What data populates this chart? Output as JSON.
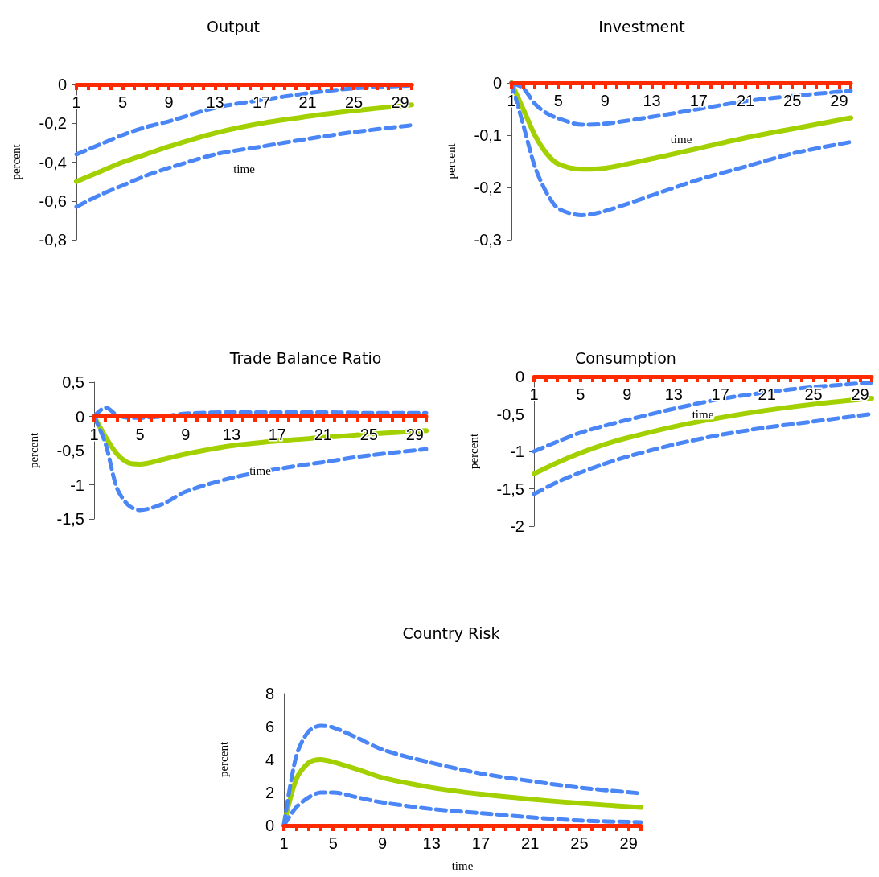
{
  "chart_data": [
    {
      "type": "line",
      "title": "Output",
      "xlabel": "time",
      "ylabel": "percent",
      "xlim": [
        1,
        30
      ],
      "ylim": [
        -0.8,
        0
      ],
      "xticks": [
        1,
        {
          "value": 2,
          "label": null
        },
        {
          "value": 3,
          "label": null
        },
        {
          "value": 4,
          "label": null
        },
        5,
        {
          "value": 6,
          "label": null
        },
        {
          "value": 7,
          "label": null
        },
        {
          "value": 8,
          "label": null
        },
        9,
        {
          "value": 10,
          "label": null
        },
        {
          "value": 11,
          "label": null
        },
        {
          "value": 12,
          "label": null
        },
        13,
        {
          "value": 14,
          "label": null
        },
        {
          "value": 15,
          "label": null
        },
        {
          "value": 16,
          "label": null
        },
        17,
        {
          "value": 18,
          "label": null
        },
        {
          "value": 19,
          "label": null
        },
        {
          "value": 20,
          "label": null
        },
        21,
        {
          "value": 22,
          "label": null
        },
        {
          "value": 23,
          "label": null
        },
        {
          "value": 24,
          "label": null
        },
        25,
        {
          "value": 26,
          "label": null
        },
        {
          "value": 27,
          "label": null
        },
        {
          "value": 28,
          "label": null
        },
        29,
        {
          "value": 30,
          "label": null
        }
      ],
      "yticks": [
        0,
        {
          "value": -0.2,
          "label": "-0,2"
        },
        {
          "value": -0.4,
          "label": "-0,4"
        },
        {
          "value": -0.6,
          "label": "-0,6"
        },
        {
          "value": -0.8,
          "label": "-0,8"
        }
      ],
      "x": [
        1,
        3,
        5,
        7,
        9,
        13,
        17,
        21,
        25,
        30
      ],
      "marker": "none",
      "grid": false,
      "series": [
        {
          "color": "#a2d000",
          "line_style": "solid",
          "values": [
            -0.5,
            -0.45,
            -0.4,
            -0.36,
            -0.32,
            -0.25,
            -0.2,
            -0.165,
            -0.135,
            -0.105
          ]
        },
        {
          "color": "#4a86f5",
          "line_style": "dashed",
          "values": [
            -0.36,
            -0.31,
            -0.26,
            -0.22,
            -0.19,
            -0.12,
            -0.08,
            -0.045,
            -0.02,
            -0.005
          ]
        },
        {
          "color": "#4a86f5",
          "line_style": "dashed",
          "values": [
            -0.63,
            -0.57,
            -0.52,
            -0.47,
            -0.43,
            -0.36,
            -0.32,
            -0.28,
            -0.245,
            -0.21
          ]
        }
      ]
    },
    {
      "type": "line",
      "title": "Investment",
      "xlabel": "time",
      "ylabel": "percent",
      "xlim": [
        1,
        30
      ],
      "ylim": [
        -0.3,
        0
      ],
      "xticks": [
        1,
        {
          "value": 2,
          "label": null
        },
        {
          "value": 3,
          "label": null
        },
        {
          "value": 4,
          "label": null
        },
        5,
        {
          "value": 6,
          "label": null
        },
        {
          "value": 7,
          "label": null
        },
        {
          "value": 8,
          "label": null
        },
        9,
        {
          "value": 10,
          "label": null
        },
        {
          "value": 11,
          "label": null
        },
        {
          "value": 12,
          "label": null
        },
        13,
        {
          "value": 14,
          "label": null
        },
        {
          "value": 15,
          "label": null
        },
        {
          "value": 16,
          "label": null
        },
        17,
        {
          "value": 18,
          "label": null
        },
        {
          "value": 19,
          "label": null
        },
        {
          "value": 20,
          "label": null
        },
        21,
        {
          "value": 22,
          "label": null
        },
        {
          "value": 23,
          "label": null
        },
        {
          "value": 24,
          "label": null
        },
        25,
        {
          "value": 26,
          "label": null
        },
        {
          "value": 27,
          "label": null
        },
        {
          "value": 28,
          "label": null
        },
        29,
        {
          "value": 30,
          "label": null
        }
      ],
      "yticks": [
        0,
        {
          "value": -0.1,
          "label": "-0,1"
        },
        {
          "value": -0.2,
          "label": "-0,2"
        },
        {
          "value": -0.3,
          "label": "-0,3"
        }
      ],
      "x": [
        1,
        2,
        3,
        4,
        5,
        7,
        9,
        13,
        17,
        21,
        25,
        30
      ],
      "marker": "none",
      "grid": false,
      "series": [
        {
          "color": "#a2d000",
          "line_style": "solid",
          "values": [
            0,
            -0.05,
            -0.1,
            -0.135,
            -0.155,
            -0.165,
            -0.163,
            -0.145,
            -0.125,
            -0.105,
            -0.088,
            -0.067
          ]
        },
        {
          "color": "#4a86f5",
          "line_style": "dashed",
          "values": [
            0,
            -0.01,
            -0.04,
            -0.058,
            -0.068,
            -0.08,
            -0.078,
            -0.065,
            -0.05,
            -0.035,
            -0.025,
            -0.015
          ]
        },
        {
          "color": "#4a86f5",
          "line_style": "dashed",
          "values": [
            0,
            -0.08,
            -0.16,
            -0.21,
            -0.24,
            -0.253,
            -0.245,
            -0.215,
            -0.185,
            -0.16,
            -0.135,
            -0.113
          ]
        }
      ]
    },
    {
      "type": "line",
      "title": "Trade Balance Ratio",
      "xlabel": "time",
      "ylabel": "percent",
      "xlim": [
        1,
        30
      ],
      "ylim": [
        -1.5,
        0.5
      ],
      "xticks": [
        1,
        {
          "value": 2,
          "label": null
        },
        {
          "value": 3,
          "label": null
        },
        {
          "value": 4,
          "label": null
        },
        5,
        {
          "value": 6,
          "label": null
        },
        {
          "value": 7,
          "label": null
        },
        {
          "value": 8,
          "label": null
        },
        9,
        {
          "value": 10,
          "label": null
        },
        {
          "value": 11,
          "label": null
        },
        {
          "value": 12,
          "label": null
        },
        13,
        {
          "value": 14,
          "label": null
        },
        {
          "value": 15,
          "label": null
        },
        {
          "value": 16,
          "label": null
        },
        17,
        {
          "value": 18,
          "label": null
        },
        {
          "value": 19,
          "label": null
        },
        {
          "value": 20,
          "label": null
        },
        21,
        {
          "value": 22,
          "label": null
        },
        {
          "value": 23,
          "label": null
        },
        {
          "value": 24,
          "label": null
        },
        25,
        {
          "value": 26,
          "label": null
        },
        {
          "value": 27,
          "label": null
        },
        {
          "value": 28,
          "label": null
        },
        29,
        {
          "value": 30,
          "label": null
        }
      ],
      "yticks": [
        {
          "value": 0.5,
          "label": "0,5"
        },
        0,
        {
          "value": -0.5,
          "label": "-0,5"
        },
        -1,
        {
          "value": -1.5,
          "label": "-1,5"
        }
      ],
      "x": [
        1,
        2,
        3,
        4,
        5,
        7,
        9,
        13,
        17,
        21,
        25,
        30
      ],
      "marker": "none",
      "grid": false,
      "series": [
        {
          "color": "#a2d000",
          "line_style": "solid",
          "values": [
            0,
            -0.3,
            -0.55,
            -0.68,
            -0.7,
            -0.63,
            -0.55,
            -0.43,
            -0.36,
            -0.31,
            -0.26,
            -0.21
          ]
        },
        {
          "color": "#4a86f5",
          "line_style": "dashed",
          "values": [
            0,
            0.13,
            0.02,
            -0.02,
            -0.02,
            0,
            0.04,
            0.06,
            0.06,
            0.06,
            0.05,
            0.05
          ]
        },
        {
          "color": "#4a86f5",
          "line_style": "dashed",
          "values": [
            0,
            -0.4,
            -1.05,
            -1.3,
            -1.37,
            -1.28,
            -1.1,
            -0.9,
            -0.77,
            -0.67,
            -0.57,
            -0.48
          ]
        }
      ]
    },
    {
      "type": "line",
      "title": "Consumption",
      "xlabel": "time",
      "ylabel": "percent",
      "xlim": [
        1,
        30
      ],
      "ylim": [
        -2,
        0
      ],
      "xticks": [
        1,
        {
          "value": 2,
          "label": null
        },
        {
          "value": 3,
          "label": null
        },
        {
          "value": 4,
          "label": null
        },
        5,
        {
          "value": 6,
          "label": null
        },
        {
          "value": 7,
          "label": null
        },
        {
          "value": 8,
          "label": null
        },
        9,
        {
          "value": 10,
          "label": null
        },
        {
          "value": 11,
          "label": null
        },
        {
          "value": 12,
          "label": null
        },
        13,
        {
          "value": 14,
          "label": null
        },
        {
          "value": 15,
          "label": null
        },
        {
          "value": 16,
          "label": null
        },
        17,
        {
          "value": 18,
          "label": null
        },
        {
          "value": 19,
          "label": null
        },
        {
          "value": 20,
          "label": null
        },
        21,
        {
          "value": 22,
          "label": null
        },
        {
          "value": 23,
          "label": null
        },
        {
          "value": 24,
          "label": null
        },
        25,
        {
          "value": 26,
          "label": null
        },
        {
          "value": 27,
          "label": null
        },
        {
          "value": 28,
          "label": null
        },
        29,
        {
          "value": 30,
          "label": null
        }
      ],
      "yticks": [
        0,
        {
          "value": -0.5,
          "label": "-0,5"
        },
        -1,
        {
          "value": -1.5,
          "label": "-1,5"
        },
        -2
      ],
      "x": [
        1,
        3,
        5,
        7,
        9,
        13,
        17,
        21,
        25,
        30
      ],
      "marker": "none",
      "grid": false,
      "series": [
        {
          "color": "#a2d000",
          "line_style": "solid",
          "values": [
            -1.3,
            -1.15,
            -1.02,
            -0.91,
            -0.82,
            -0.67,
            -0.55,
            -0.45,
            -0.37,
            -0.29
          ]
        },
        {
          "color": "#4a86f5",
          "line_style": "dashed",
          "values": [
            -1.0,
            -0.87,
            -0.75,
            -0.66,
            -0.58,
            -0.43,
            -0.3,
            -0.21,
            -0.14,
            -0.08
          ]
        },
        {
          "color": "#4a86f5",
          "line_style": "dashed",
          "values": [
            -1.57,
            -1.41,
            -1.28,
            -1.17,
            -1.07,
            -0.91,
            -0.78,
            -0.68,
            -0.6,
            -0.5
          ]
        }
      ]
    },
    {
      "type": "line",
      "title": "Country Risk",
      "xlabel": "time",
      "ylabel": "percent",
      "xlim": [
        1,
        30
      ],
      "ylim": [
        0,
        8
      ],
      "xticks": [
        1,
        {
          "value": 2,
          "label": null
        },
        {
          "value": 3,
          "label": null
        },
        {
          "value": 4,
          "label": null
        },
        5,
        {
          "value": 6,
          "label": null
        },
        {
          "value": 7,
          "label": null
        },
        {
          "value": 8,
          "label": null
        },
        9,
        {
          "value": 10,
          "label": null
        },
        {
          "value": 11,
          "label": null
        },
        {
          "value": 12,
          "label": null
        },
        13,
        {
          "value": 14,
          "label": null
        },
        {
          "value": 15,
          "label": null
        },
        {
          "value": 16,
          "label": null
        },
        17,
        {
          "value": 18,
          "label": null
        },
        {
          "value": 19,
          "label": null
        },
        {
          "value": 20,
          "label": null
        },
        21,
        {
          "value": 22,
          "label": null
        },
        {
          "value": 23,
          "label": null
        },
        {
          "value": 24,
          "label": null
        },
        25,
        {
          "value": 26,
          "label": null
        },
        {
          "value": 27,
          "label": null
        },
        {
          "value": 28,
          "label": null
        },
        29,
        {
          "value": 30,
          "label": null
        }
      ],
      "yticks": [
        0,
        2,
        4,
        6,
        8
      ],
      "x": [
        1,
        2,
        3,
        4,
        5,
        7,
        9,
        13,
        17,
        21,
        25,
        30
      ],
      "marker": "none",
      "grid": false,
      "series": [
        {
          "color": "#a2d000",
          "line_style": "solid",
          "values": [
            0,
            2.8,
            3.8,
            4.0,
            3.85,
            3.4,
            2.9,
            2.3,
            1.9,
            1.6,
            1.35,
            1.1
          ]
        },
        {
          "color": "#4a86f5",
          "line_style": "dashed",
          "values": [
            0,
            4.2,
            5.7,
            6.05,
            5.95,
            5.3,
            4.6,
            3.8,
            3.15,
            2.7,
            2.3,
            1.95
          ]
        },
        {
          "color": "#4a86f5",
          "line_style": "dashed",
          "values": [
            0,
            1.1,
            1.7,
            2.0,
            2.0,
            1.7,
            1.4,
            1.0,
            0.75,
            0.5,
            0.3,
            0.2
          ]
        }
      ]
    }
  ]
}
